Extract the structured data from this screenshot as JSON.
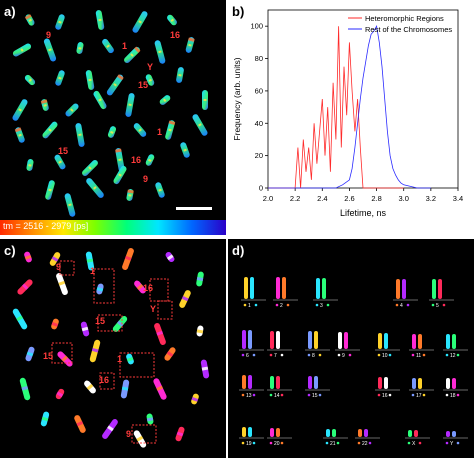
{
  "panels": {
    "a": "a)",
    "b": "b)",
    "c": "c)",
    "d": "d)"
  },
  "panel_a": {
    "colorbar_text": "tm = 2516 - 2979 [ps]",
    "annotations": {
      "n9_top": "9",
      "n1_top": "1",
      "n16_top": "16",
      "y": "Y",
      "n15_mid": "15",
      "n1_mid": "1",
      "n15_low": "15",
      "n16_low": "16",
      "n9_low": "9"
    }
  },
  "panel_c": {
    "annotations": {
      "n9_top": "9",
      "n1_top": "1",
      "n16_top": "16",
      "y": "Y",
      "n15_mid": "15",
      "n15_low": "15",
      "n1_low": "1",
      "n16_low": "16",
      "n9_low": "9"
    }
  },
  "panel_d": {
    "numbers": [
      "1",
      "2",
      "3",
      "4",
      "5",
      "6",
      "7",
      "8",
      "9",
      "10",
      "11",
      "12",
      "13",
      "14",
      "15",
      "16",
      "17",
      "18",
      "19",
      "20",
      "21",
      "22",
      "X",
      "Y"
    ]
  },
  "chart_data": {
    "type": "line",
    "xlabel": "Lifetime, ns",
    "ylabel": "Frequency (arb. units)",
    "xlim": [
      2.0,
      3.4
    ],
    "ylim": [
      0,
      110
    ],
    "xticks": [
      "2.0",
      "2.2",
      "2.4",
      "2.6",
      "2.8",
      "3.0",
      "3.2",
      "3.4"
    ],
    "yticks": [
      "0",
      "20",
      "40",
      "60",
      "80",
      "100"
    ],
    "legend_position": "top-right",
    "series": [
      {
        "name": "Heteromorphic Regions",
        "color": "#ff2a2a",
        "x": [
          2.0,
          2.05,
          2.1,
          2.15,
          2.2,
          2.22,
          2.24,
          2.26,
          2.28,
          2.3,
          2.32,
          2.34,
          2.36,
          2.38,
          2.4,
          2.42,
          2.44,
          2.46,
          2.48,
          2.5,
          2.52,
          2.54,
          2.56,
          2.58,
          2.6,
          2.62,
          2.64,
          2.66,
          2.68,
          2.7,
          2.75,
          2.8,
          2.9,
          3.0
        ],
        "y": [
          0,
          0,
          0,
          0,
          0,
          25,
          0,
          30,
          10,
          25,
          5,
          40,
          15,
          35,
          55,
          20,
          50,
          10,
          65,
          30,
          100,
          25,
          75,
          45,
          90,
          60,
          35,
          55,
          25,
          0,
          0,
          0,
          0,
          0
        ]
      },
      {
        "name": "Rest of the Chromosomes",
        "color": "#2a2aff",
        "x": [
          2.0,
          2.4,
          2.5,
          2.55,
          2.6,
          2.62,
          2.64,
          2.66,
          2.68,
          2.7,
          2.72,
          2.74,
          2.76,
          2.78,
          2.8,
          2.82,
          2.84,
          2.86,
          2.88,
          2.9,
          2.92,
          2.94,
          2.96,
          2.98,
          3.0,
          3.05,
          3.1,
          3.2
        ],
        "y": [
          0,
          0,
          0,
          2,
          5,
          12,
          25,
          40,
          55,
          68,
          78,
          88,
          95,
          97,
          100,
          90,
          75,
          55,
          35,
          20,
          12,
          8,
          5,
          3,
          2,
          1,
          0,
          0
        ]
      }
    ]
  }
}
